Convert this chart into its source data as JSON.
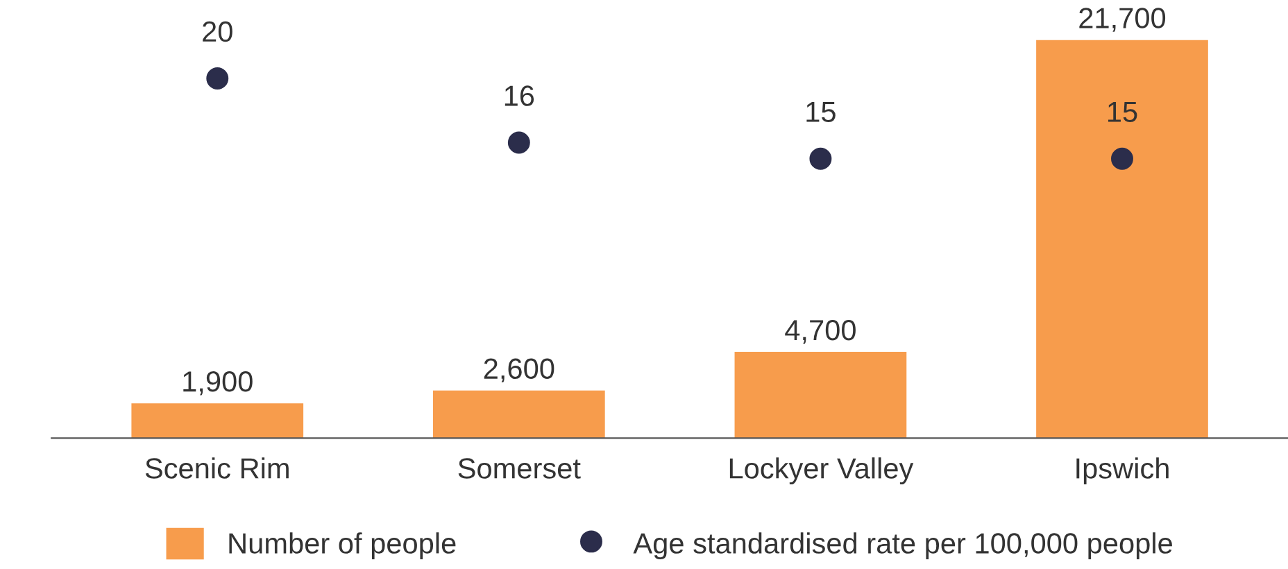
{
  "chart_data": {
    "type": "bar",
    "categories": [
      "Scenic Rim",
      "Somerset",
      "Lockyer Valley",
      "Ipswich"
    ],
    "legend": "bottom",
    "grid": false,
    "series": [
      {
        "name": "Number of people",
        "color": "#f79c4c",
        "values": [
          1900,
          2600,
          4700,
          21700
        ],
        "value_labels": [
          "1,900",
          "2,600",
          "4,700",
          "21,700"
        ]
      },
      {
        "name": "Age standardised rate per 100,000 people",
        "type": "scatter",
        "axis": "y2",
        "marker": "circle",
        "color": "#2b2d4b",
        "values": [
          20,
          16,
          15,
          15
        ],
        "value_labels": [
          "20",
          "16",
          "15",
          "15"
        ]
      }
    ]
  }
}
